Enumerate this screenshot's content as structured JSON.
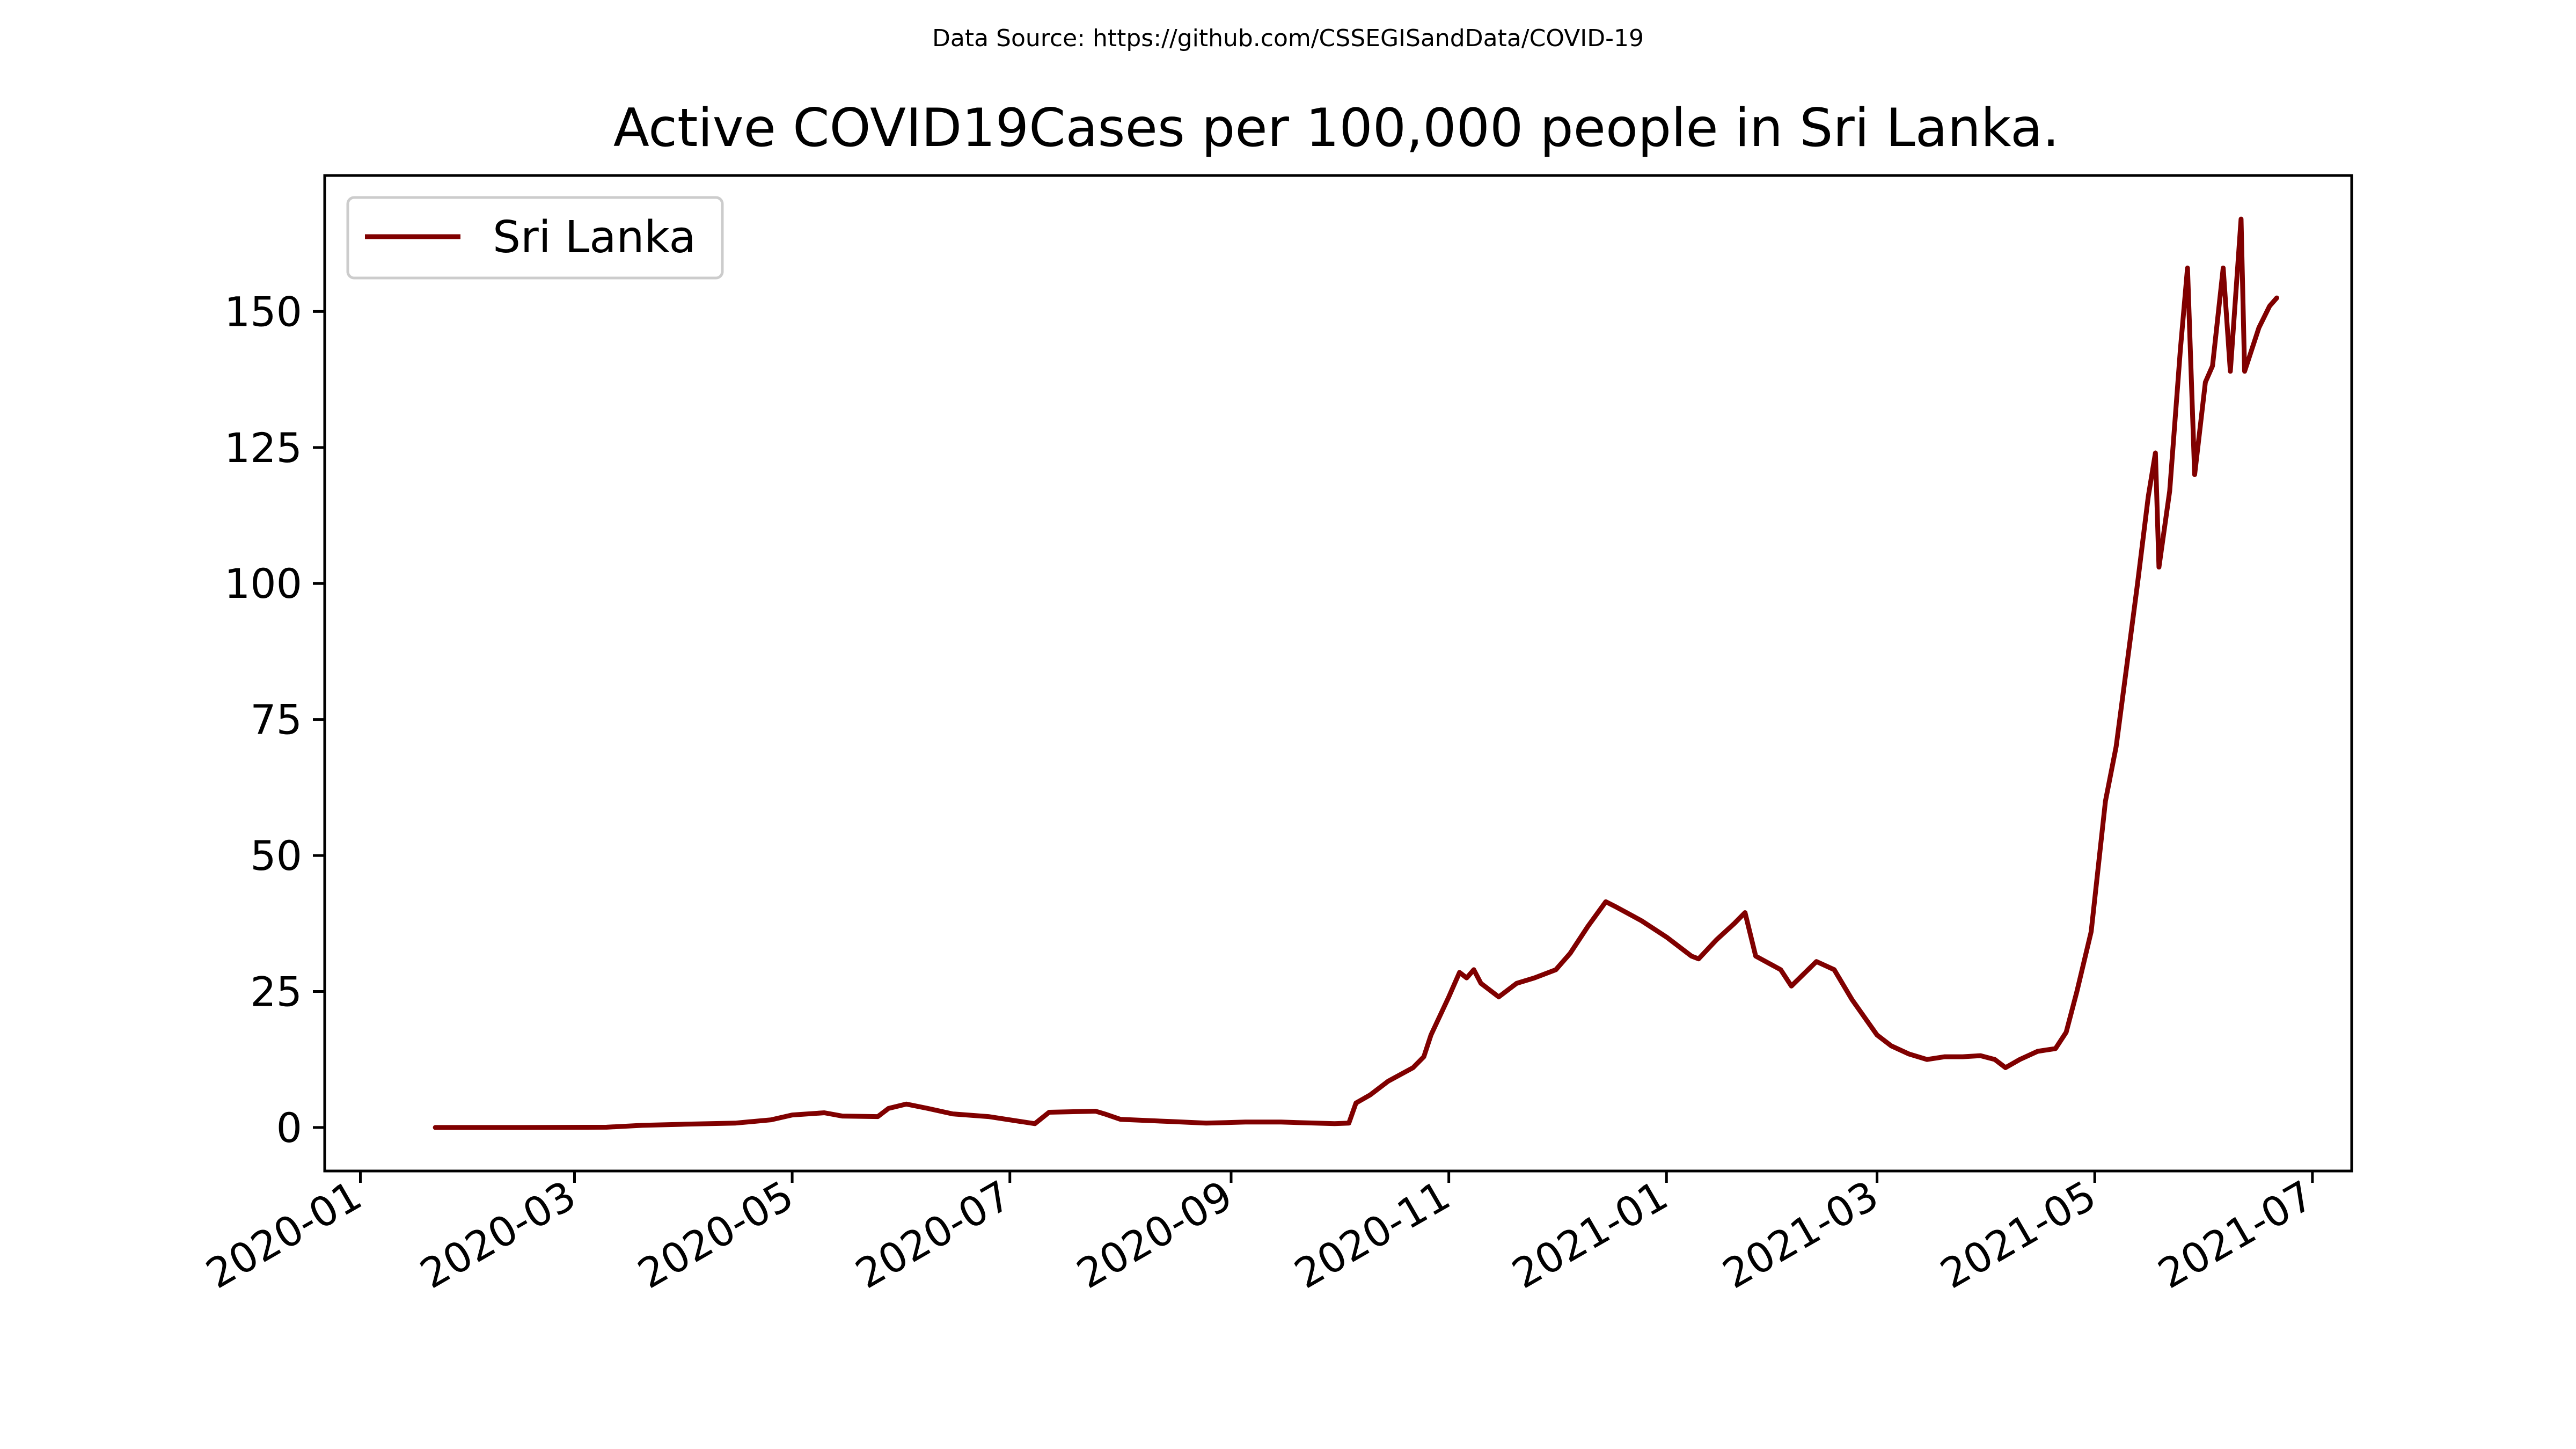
{
  "source_note": "Data Source: https://github.com/CSSEGISandData/COVID-19",
  "colors": {
    "series": "#800000",
    "axes": "#000000",
    "background": "#ffffff",
    "legend_border": "#cccccc"
  },
  "chart_data": {
    "type": "line",
    "title": "Active COVID19Cases per 100,000 people in Sri Lanka.",
    "xlabel": "",
    "ylabel": "",
    "x_type": "date",
    "xlim": [
      "2019-12-22",
      "2021-07-12"
    ],
    "ylim": [
      -8,
      175
    ],
    "x_ticks": [
      "2020-01",
      "2020-03",
      "2020-05",
      "2020-07",
      "2020-09",
      "2020-11",
      "2021-01",
      "2021-03",
      "2021-05",
      "2021-07"
    ],
    "x_tick_dates": [
      "2020-01-01",
      "2020-03-01",
      "2020-05-01",
      "2020-07-01",
      "2020-09-01",
      "2020-11-01",
      "2021-01-01",
      "2021-03-01",
      "2021-05-01",
      "2021-07-01"
    ],
    "y_ticks": [
      0,
      25,
      50,
      75,
      100,
      125,
      150
    ],
    "grid": false,
    "legend": {
      "position": "top-left",
      "entries": [
        "Sri Lanka"
      ]
    },
    "series": [
      {
        "name": "Sri Lanka",
        "color": "#800000",
        "points": [
          [
            "2020-01-22",
            0
          ],
          [
            "2020-02-15",
            0
          ],
          [
            "2020-03-10",
            0.05
          ],
          [
            "2020-03-20",
            0.4
          ],
          [
            "2020-04-01",
            0.6
          ],
          [
            "2020-04-15",
            0.8
          ],
          [
            "2020-04-25",
            1.4
          ],
          [
            "2020-05-01",
            2.3
          ],
          [
            "2020-05-10",
            2.7
          ],
          [
            "2020-05-15",
            2.1
          ],
          [
            "2020-05-25",
            2.0
          ],
          [
            "2020-05-28",
            3.5
          ],
          [
            "2020-06-02",
            4.3
          ],
          [
            "2020-06-08",
            3.5
          ],
          [
            "2020-06-15",
            2.5
          ],
          [
            "2020-06-25",
            2.0
          ],
          [
            "2020-07-08",
            0.7
          ],
          [
            "2020-07-12",
            2.8
          ],
          [
            "2020-07-25",
            3.0
          ],
          [
            "2020-07-28",
            2.4
          ],
          [
            "2020-08-01",
            1.5
          ],
          [
            "2020-08-15",
            1.1
          ],
          [
            "2020-08-25",
            0.8
          ],
          [
            "2020-09-05",
            1.0
          ],
          [
            "2020-09-15",
            1.0
          ],
          [
            "2020-09-30",
            0.7
          ],
          [
            "2020-10-04",
            0.8
          ],
          [
            "2020-10-06",
            4.5
          ],
          [
            "2020-10-10",
            6.0
          ],
          [
            "2020-10-15",
            8.5
          ],
          [
            "2020-10-22",
            11.0
          ],
          [
            "2020-10-25",
            13.0
          ],
          [
            "2020-10-27",
            17.0
          ],
          [
            "2020-11-01",
            24.0
          ],
          [
            "2020-11-04",
            28.5
          ],
          [
            "2020-11-06",
            27.5
          ],
          [
            "2020-11-08",
            29.0
          ],
          [
            "2020-11-10",
            26.5
          ],
          [
            "2020-11-15",
            24.0
          ],
          [
            "2020-11-20",
            26.5
          ],
          [
            "2020-11-25",
            27.5
          ],
          [
            "2020-12-01",
            29.0
          ],
          [
            "2020-12-05",
            32.0
          ],
          [
            "2020-12-10",
            37.0
          ],
          [
            "2020-12-15",
            41.5
          ],
          [
            "2020-12-18",
            40.5
          ],
          [
            "2020-12-25",
            38.0
          ],
          [
            "2021-01-01",
            35.0
          ],
          [
            "2021-01-08",
            31.5
          ],
          [
            "2021-01-10",
            31.0
          ],
          [
            "2021-01-15",
            34.5
          ],
          [
            "2021-01-20",
            37.5
          ],
          [
            "2021-01-23",
            39.5
          ],
          [
            "2021-01-26",
            31.5
          ],
          [
            "2021-02-02",
            29.0
          ],
          [
            "2021-02-05",
            26.0
          ],
          [
            "2021-02-12",
            30.5
          ],
          [
            "2021-02-17",
            29.0
          ],
          [
            "2021-02-22",
            23.5
          ],
          [
            "2021-03-01",
            17.0
          ],
          [
            "2021-03-05",
            15.0
          ],
          [
            "2021-03-10",
            13.5
          ],
          [
            "2021-03-15",
            12.5
          ],
          [
            "2021-03-20",
            13.0
          ],
          [
            "2021-03-25",
            13.0
          ],
          [
            "2021-03-30",
            13.2
          ],
          [
            "2021-04-03",
            12.5
          ],
          [
            "2021-04-06",
            11.0
          ],
          [
            "2021-04-10",
            12.5
          ],
          [
            "2021-04-15",
            14.0
          ],
          [
            "2021-04-20",
            14.5
          ],
          [
            "2021-04-23",
            17.5
          ],
          [
            "2021-04-26",
            25.0
          ],
          [
            "2021-04-30",
            36.0
          ],
          [
            "2021-05-04",
            60.0
          ],
          [
            "2021-05-07",
            70.0
          ],
          [
            "2021-05-10",
            85.0
          ],
          [
            "2021-05-13",
            100.0
          ],
          [
            "2021-05-16",
            116.0
          ],
          [
            "2021-05-18",
            124.0
          ],
          [
            "2021-05-19",
            103.0
          ],
          [
            "2021-05-22",
            117.0
          ],
          [
            "2021-05-25",
            143.0
          ],
          [
            "2021-05-27",
            158.0
          ],
          [
            "2021-05-29",
            120.0
          ],
          [
            "2021-06-01",
            137.0
          ],
          [
            "2021-06-03",
            140.0
          ],
          [
            "2021-06-06",
            158.0
          ],
          [
            "2021-06-08",
            139.0
          ],
          [
            "2021-06-11",
            167.0
          ],
          [
            "2021-06-12",
            139.0
          ],
          [
            "2021-06-14",
            143.0
          ],
          [
            "2021-06-16",
            147.0
          ],
          [
            "2021-06-19",
            151.0
          ],
          [
            "2021-06-21",
            152.5
          ]
        ]
      }
    ]
  }
}
